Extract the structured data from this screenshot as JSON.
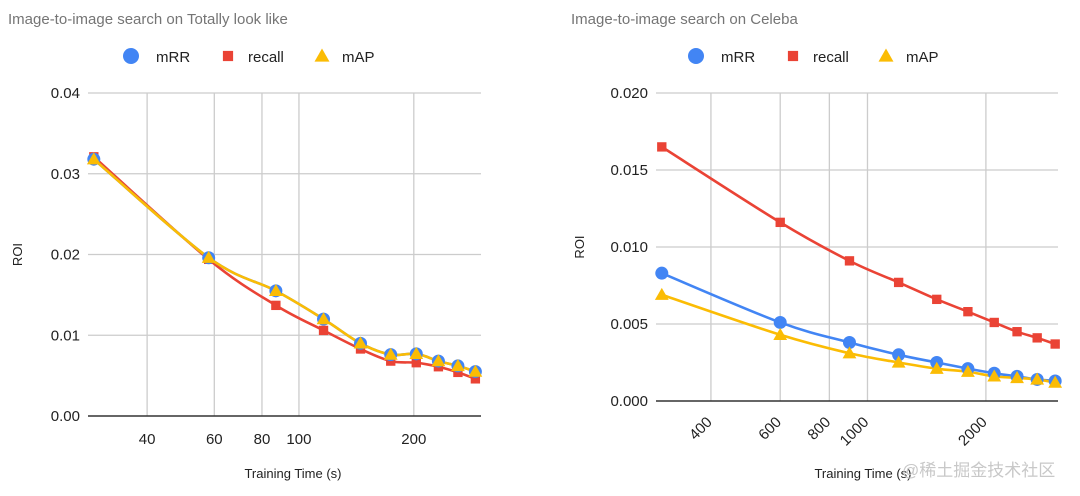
{
  "colors": {
    "mRR": "#4285f4",
    "recall": "#ea4335",
    "mAP": "#fbbc04"
  },
  "watermark": "@稀土掘金技术社区",
  "chart_data": [
    {
      "type": "line",
      "title": "Image-to-image search on Totally look like",
      "xlabel": "Training Time (s)",
      "ylabel": "ROI",
      "xscale": "log",
      "xlim": [
        28,
        300
      ],
      "ylim": [
        0,
        0.04
      ],
      "xticks": [
        40,
        60,
        80,
        100,
        200
      ],
      "xtick_labels": [
        "40",
        "60",
        "80",
        "100",
        "200"
      ],
      "xtick_rotation": 0,
      "yticks": [
        0,
        0.01,
        0.02,
        0.03,
        0.04
      ],
      "ytick_labels": [
        "0.00",
        "0.01",
        "0.02",
        "0.03",
        "0.04"
      ],
      "grid": true,
      "legend": "top",
      "x": [
        29,
        58,
        87,
        116,
        145,
        174,
        203,
        232,
        261,
        290
      ],
      "series": [
        {
          "name": "mRR",
          "marker": "circle",
          "values": [
            0.0318,
            0.0196,
            0.0155,
            0.012,
            0.009,
            0.0076,
            0.0077,
            0.0068,
            0.0062,
            0.0055
          ]
        },
        {
          "name": "recall",
          "marker": "square",
          "values": [
            0.0321,
            0.0194,
            0.0137,
            0.0106,
            0.0083,
            0.0068,
            0.0066,
            0.0061,
            0.0054,
            0.0046
          ]
        },
        {
          "name": "mAP",
          "marker": "triangle",
          "values": [
            0.0318,
            0.0196,
            0.0155,
            0.012,
            0.009,
            0.0076,
            0.0077,
            0.0068,
            0.0062,
            0.0055
          ]
        }
      ]
    },
    {
      "type": "line",
      "title": "Image-to-image search on Celeba",
      "xlabel": "Training Time (s)",
      "ylabel": "ROI",
      "xscale": "log",
      "xlim": [
        290,
        3050
      ],
      "ylim": [
        0,
        0.02
      ],
      "xticks": [
        400,
        600,
        800,
        1000,
        2000
      ],
      "xtick_labels": [
        "400",
        "600",
        "800",
        "1000",
        "2000"
      ],
      "xtick_rotation": -45,
      "yticks": [
        0,
        0.005,
        0.01,
        0.015,
        0.02
      ],
      "ytick_labels": [
        "0.000",
        "0.005",
        "0.010",
        "0.015",
        "0.020"
      ],
      "grid": true,
      "legend": "top",
      "x": [
        300,
        600,
        900,
        1200,
        1500,
        1800,
        2100,
        2400,
        2700,
        3000
      ],
      "series": [
        {
          "name": "mRR",
          "marker": "circle",
          "values": [
            0.0083,
            0.0051,
            0.0038,
            0.003,
            0.0025,
            0.0021,
            0.0018,
            0.0016,
            0.0014,
            0.0013
          ]
        },
        {
          "name": "recall",
          "marker": "square",
          "values": [
            0.0165,
            0.0116,
            0.0091,
            0.0077,
            0.0066,
            0.0058,
            0.0051,
            0.0045,
            0.0041,
            0.0037
          ]
        },
        {
          "name": "mAP",
          "marker": "triangle",
          "values": [
            0.0069,
            0.0043,
            0.0031,
            0.0025,
            0.0021,
            0.0019,
            0.0016,
            0.0015,
            0.0014,
            0.0012
          ]
        }
      ]
    }
  ]
}
